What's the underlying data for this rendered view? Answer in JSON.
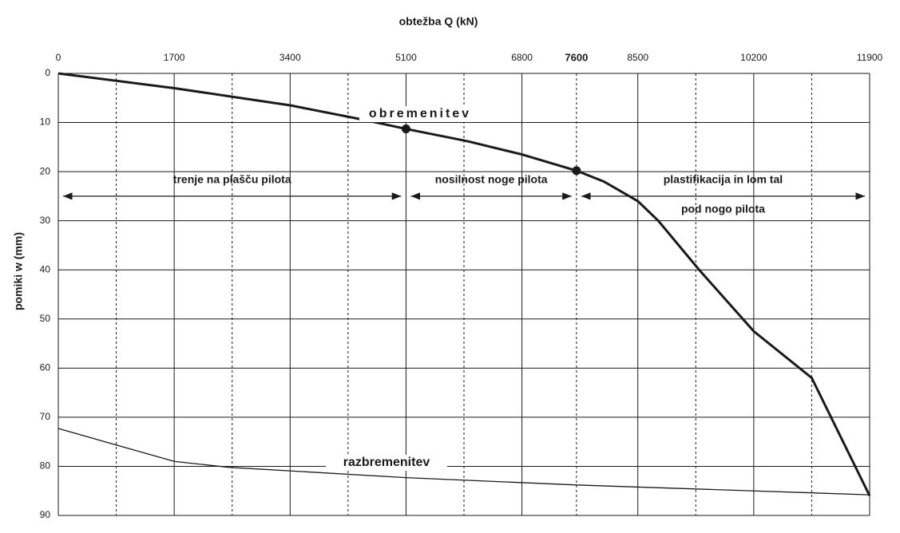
{
  "chart_data": {
    "type": "line",
    "title": "obtežba Q (kN)",
    "ylabel": "pomiki w (mm)",
    "xlim": [
      0,
      11900
    ],
    "xticks": [
      0,
      1700,
      3400,
      5100,
      6800,
      7600,
      8500,
      10200,
      11900
    ],
    "emphasis_xtick": 7600,
    "x_minor_grid": [
      850,
      2550,
      4250,
      5950,
      9350,
      11050
    ],
    "ylim": [
      0,
      90
    ],
    "yticks": [
      0,
      10,
      20,
      30,
      40,
      50,
      60,
      70,
      80,
      90
    ],
    "y_inverted": true,
    "grid": true,
    "series": [
      {
        "name": "obremenitev",
        "color": "#1a1a1a",
        "x": [
          0,
          1700,
          3400,
          4500,
          5100,
          6000,
          6800,
          7600,
          8000,
          8500,
          8800,
          9400,
          10200,
          11050,
          11900
        ],
        "y": [
          0,
          3,
          6.5,
          9.5,
          11.3,
          13.8,
          16.5,
          19.8,
          22,
          26,
          30,
          40,
          52.5,
          62,
          86
        ]
      },
      {
        "name": "razbremenitev",
        "color": "#1a1a1a",
        "x": [
          0,
          1700,
          2500,
          5100,
          7600,
          10200,
          11900
        ],
        "y": [
          72.3,
          79,
          80.2,
          82.3,
          83.8,
          85,
          85.8
        ]
      }
    ],
    "points": {
      "x": [
        5100,
        7600
      ],
      "y": [
        11.3,
        19.8
      ]
    },
    "regions": [
      {
        "from": 0,
        "to": 5100,
        "lines": [
          "trenje na plašču pilota"
        ]
      },
      {
        "from": 5100,
        "to": 7600,
        "lines": [
          "nosilnost noge pilota"
        ]
      },
      {
        "from": 7600,
        "to": 11900,
        "lines": [
          "plastifikacija in lom tal",
          "pod nogo pilota"
        ]
      }
    ]
  }
}
